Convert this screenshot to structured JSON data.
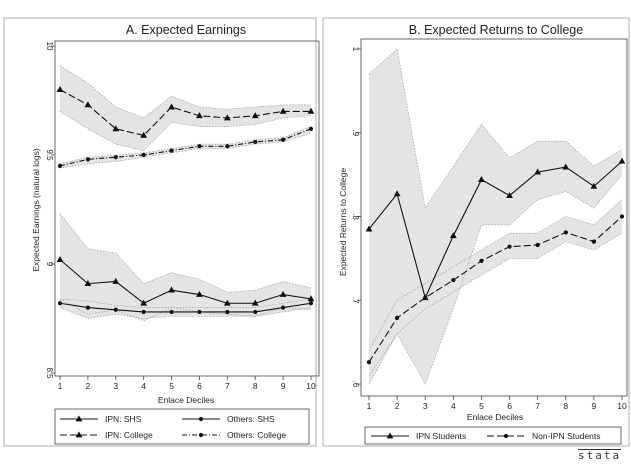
{
  "chart_data": [
    {
      "type": "line",
      "title": "A. Expected Earnings",
      "xlabel": "Enlace Deciles",
      "ylabel": "Expected Earnings (natural logs)",
      "x": [
        1,
        2,
        3,
        4,
        5,
        6,
        7,
        8,
        9,
        10
      ],
      "xticks": [
        "1",
        "2",
        "3",
        "4",
        "5",
        "6",
        "7",
        "8",
        "9",
        "10"
      ],
      "ylim": [
        8.5,
        10
      ],
      "yticks": [
        8.5,
        9,
        9.5,
        10
      ],
      "ytick_labels": [
        "8.5",
        "9",
        "9.5",
        "10"
      ],
      "grid": false,
      "legend_position": "bottom",
      "series": [
        {
          "name": "IPN: SHS",
          "marker": "triangle",
          "dash": "solid",
          "values": [
            9.02,
            8.91,
            8.92,
            8.82,
            8.88,
            8.86,
            8.82,
            8.82,
            8.86,
            8.84
          ],
          "ci_low": [
            8.84,
            8.77,
            8.79,
            8.74,
            8.8,
            8.78,
            8.77,
            8.76,
            8.8,
            8.79
          ],
          "ci_high": [
            9.23,
            9.07,
            9.05,
            8.91,
            8.96,
            8.93,
            8.87,
            8.88,
            8.92,
            8.89
          ]
        },
        {
          "name": "Others: SHS",
          "marker": "dot",
          "dash": "solid",
          "values": [
            8.82,
            8.8,
            8.79,
            8.78,
            8.78,
            8.78,
            8.78,
            8.78,
            8.8,
            8.82
          ],
          "ci_low": [
            8.8,
            8.75,
            8.77,
            8.75,
            8.76,
            8.76,
            8.76,
            8.76,
            8.78,
            8.8
          ],
          "ci_high": [
            8.84,
            8.83,
            8.81,
            8.8,
            8.8,
            8.8,
            8.8,
            8.8,
            8.82,
            8.84
          ]
        },
        {
          "name": "IPN: College",
          "marker": "triangle",
          "dash": "long",
          "values": [
            9.8,
            9.73,
            9.62,
            9.59,
            9.72,
            9.68,
            9.67,
            9.68,
            9.7,
            9.7
          ],
          "ci_low": [
            9.7,
            9.62,
            9.55,
            9.52,
            9.65,
            9.63,
            9.63,
            9.64,
            9.67,
            9.68
          ],
          "ci_high": [
            9.91,
            9.83,
            9.72,
            9.67,
            9.77,
            9.72,
            9.71,
            9.72,
            9.73,
            9.73
          ]
        },
        {
          "name": "Others: College",
          "marker": "dot",
          "dash": "dashdot",
          "values": [
            9.45,
            9.48,
            9.49,
            9.5,
            9.52,
            9.54,
            9.54,
            9.56,
            9.57,
            9.62
          ],
          "ci_low": [
            9.44,
            9.46,
            9.47,
            9.49,
            9.51,
            9.53,
            9.53,
            9.55,
            9.56,
            9.6
          ],
          "ci_high": [
            9.46,
            9.49,
            9.5,
            9.51,
            9.53,
            9.55,
            9.55,
            9.57,
            9.58,
            9.63
          ]
        }
      ]
    },
    {
      "type": "line",
      "title": "B. Expected Returns to College",
      "xlabel": "Enlace Deciles",
      "ylabel": "Expected Returns to College",
      "x": [
        1,
        2,
        3,
        4,
        5,
        6,
        7,
        8,
        9,
        10
      ],
      "xticks": [
        "1",
        "2",
        "3",
        "4",
        "5",
        "6",
        "7",
        "8",
        "9",
        "10"
      ],
      "ylim": [
        0.6,
        1.0
      ],
      "yticks": [
        0.6,
        0.7,
        0.8,
        0.9,
        1.0
      ],
      "ytick_labels": [
        ".6",
        ".7",
        ".8",
        ".9",
        "1"
      ],
      "grid": false,
      "legend_position": "bottom",
      "series": [
        {
          "name": "IPN Students",
          "marker": "triangle",
          "dash": "solid",
          "values": [
            0.785,
            0.827,
            0.703,
            0.777,
            0.844,
            0.825,
            0.853,
            0.859,
            0.836,
            0.866
          ],
          "ci_low": [
            0.6,
            0.66,
            0.6,
            0.69,
            0.79,
            0.79,
            0.82,
            0.83,
            0.81,
            0.85
          ],
          "ci_high": [
            0.97,
            1.0,
            0.81,
            0.86,
            0.91,
            0.87,
            0.89,
            0.89,
            0.86,
            0.88
          ]
        },
        {
          "name": "Non-IPN Students",
          "marker": "dot",
          "dash": "long",
          "values": [
            0.626,
            0.679,
            0.703,
            0.724,
            0.747,
            0.764,
            0.766,
            0.781,
            0.77,
            0.8
          ],
          "ci_low": [
            0.61,
            0.66,
            0.69,
            0.71,
            0.73,
            0.75,
            0.75,
            0.77,
            0.76,
            0.78
          ],
          "ci_high": [
            0.64,
            0.7,
            0.72,
            0.74,
            0.76,
            0.78,
            0.78,
            0.8,
            0.79,
            0.82
          ]
        }
      ]
    }
  ],
  "footer": {
    "logo_text": "stata"
  }
}
